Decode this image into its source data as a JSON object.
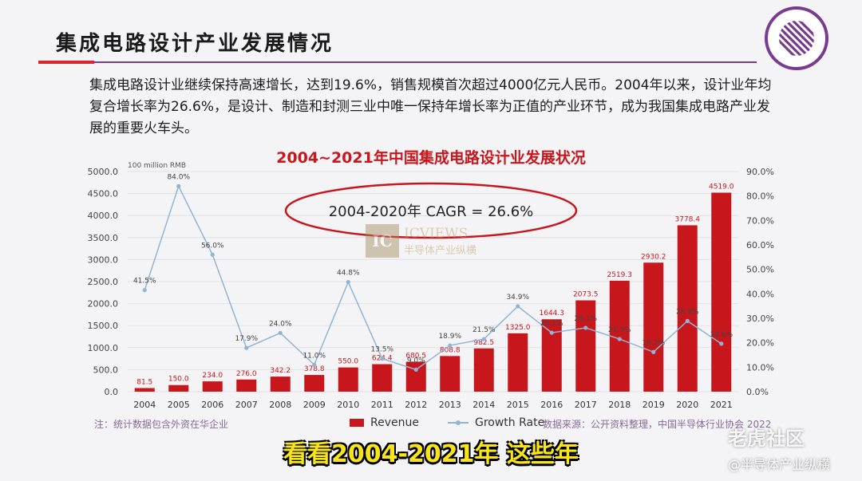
{
  "slide": {
    "title": "集成电路设计产业发展情况",
    "intro": "集成电路设计业继续保持高速增长，达到19.6%，销售规模首次超过4000亿元人民币。2004年以来，设计业年均复合增长率为26.6%，是设计、制造和封测三业中唯一保持年增长率为正值的产业环节，成为我国集成电路产业发展的重要火车头。",
    "footnote": "注：统计数据包含外资在华企业",
    "source": "数据来源：公开资料整理，中国半导体行业协会 2022",
    "subtitle": "看看2004-2021年 这些年",
    "watermark_1": "老虎社区",
    "watermark_2": "@半导体产业纵横",
    "center_watermark": {
      "box": "IC",
      "line1": "ICVIEWS",
      "line2": "半导体产业纵横"
    }
  },
  "chart_data": {
    "type": "bar",
    "title": "2004~2021年中国集成电路设计业发展状况",
    "unit_label": "100 million RMB",
    "annotation": "2004-2020年  CAGR = 26.6%",
    "categories": [
      "2004",
      "2005",
      "2006",
      "2007",
      "2008",
      "2009",
      "2010",
      "2011",
      "2012",
      "2013",
      "2014",
      "2015",
      "2016",
      "2017",
      "2018",
      "2019",
      "2020",
      "2021"
    ],
    "series": [
      {
        "name": "Revenue",
        "type": "bar",
        "axis": "left",
        "values": [
          81.5,
          150.0,
          234.0,
          276.0,
          342.2,
          378.8,
          550.0,
          624.4,
          680.5,
          808.8,
          982.5,
          1325.0,
          1644.3,
          2073.5,
          2519.3,
          2930.2,
          3778.4,
          4519.0
        ],
        "labels": [
          "81.5",
          "150.0",
          "234.0",
          "276.0",
          "342.2",
          "378.8",
          "550.0",
          "624.4",
          "680.5",
          "808.8",
          "982.5",
          "1325.0",
          "1644.3",
          "2073.5",
          "2519.3",
          "2930.2",
          "3778.4",
          "4519.0"
        ]
      },
      {
        "name": "Growth Rate",
        "type": "line",
        "axis": "right",
        "values": [
          41.5,
          84.0,
          56.0,
          17.9,
          24.0,
          11.0,
          44.8,
          13.5,
          9.0,
          18.9,
          21.5,
          34.9,
          24.1,
          26.1,
          21.5,
          16.2,
          28.9,
          19.6
        ],
        "labels": [
          "41.5%",
          "84.0%",
          "56.0%",
          "17.9%",
          "24.0%",
          "11.0%",
          "44.8%",
          "13.5%",
          "9.0%",
          "18.9%",
          "21.5%",
          "34.9%",
          "24.1%",
          "26.1%",
          "21.5%",
          "16.2%",
          "28.9%",
          "19.6%"
        ]
      }
    ],
    "y_left": {
      "min": 0,
      "max": 5000,
      "ticks": [
        "0.0",
        "500.0",
        "1000.0",
        "1500.0",
        "2000.0",
        "2500.0",
        "3000.0",
        "3500.0",
        "4000.0",
        "4500.0",
        "5000.0"
      ]
    },
    "y_right": {
      "min": 0,
      "max": 90,
      "ticks": [
        "0.0%",
        "10.0%",
        "20.0%",
        "30.0%",
        "40.0%",
        "50.0%",
        "60.0%",
        "70.0%",
        "80.0%",
        "90.0%"
      ]
    },
    "grid": true,
    "legend_position": "bottom",
    "colors": {
      "bar": "#c8161d",
      "line": "#8fb5d6",
      "annotation": "#c8161d"
    }
  }
}
